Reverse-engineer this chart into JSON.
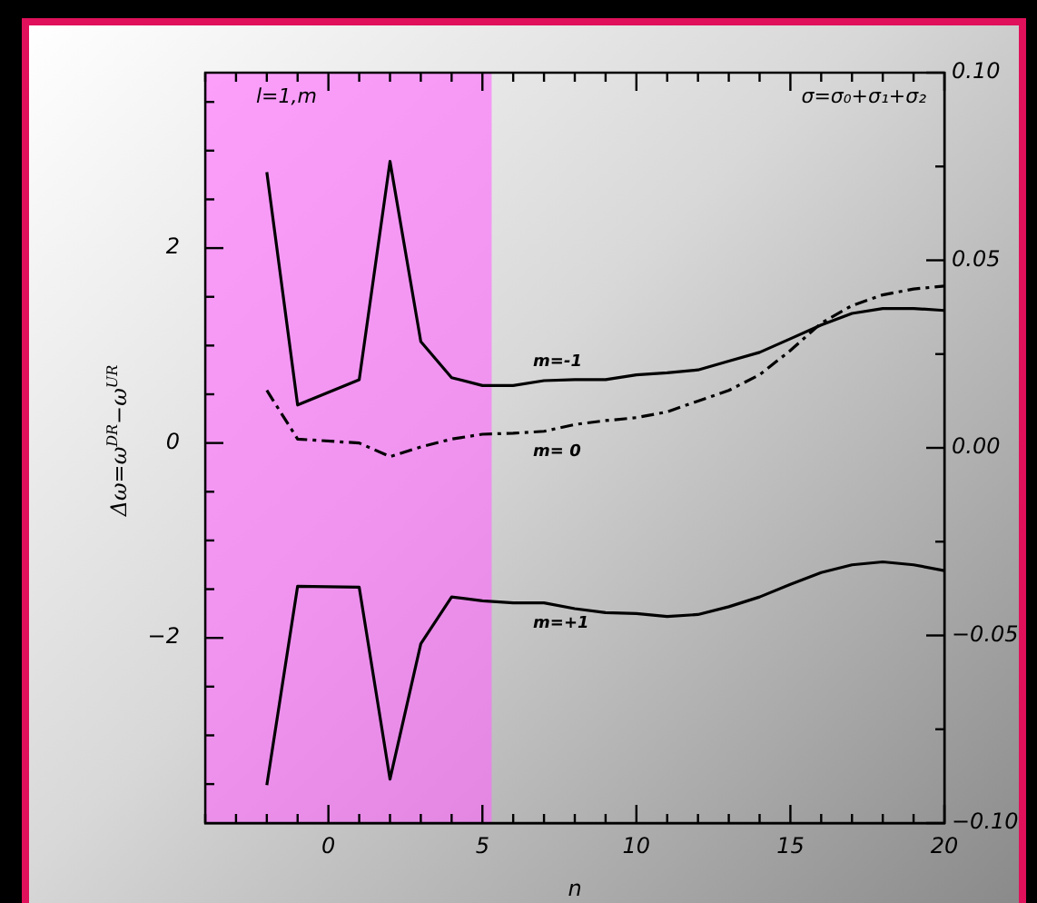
{
  "chart_data": {
    "type": "line",
    "xlabel": "n",
    "ylabel": "Δω=ω$^{DR}$−ω$^{UR}$",
    "x": [
      -2,
      -1,
      1,
      2,
      3,
      4,
      5,
      6,
      7,
      8,
      9,
      10,
      11,
      12,
      13,
      14,
      15,
      16,
      17,
      18,
      19,
      20
    ],
    "series": [
      {
        "name": "m=-1",
        "color": "#000000",
        "values": [
          2.78,
          0.39,
          0.65,
          2.89,
          1.04,
          0.67,
          0.59,
          0.59,
          0.64,
          0.65,
          0.65,
          0.7,
          0.72,
          0.75,
          0.84,
          0.93,
          1.07,
          1.21,
          1.33,
          1.38,
          1.38,
          1.36
        ]
      },
      {
        "name": "m= 0",
        "color": "#000000",
        "line_style": "dashed",
        "values": [
          0.54,
          0.04,
          0.0,
          -0.14,
          -0.04,
          0.04,
          0.09,
          0.1,
          0.12,
          0.19,
          0.23,
          0.26,
          0.32,
          0.43,
          0.54,
          0.7,
          0.95,
          1.23,
          1.41,
          1.52,
          1.58,
          1.61
        ]
      },
      {
        "name": "m=+1",
        "color": "#000000",
        "values": [
          -3.51,
          -1.47,
          -1.48,
          -3.45,
          -2.06,
          -1.58,
          -1.62,
          -1.64,
          -1.64,
          -1.7,
          -1.74,
          -1.75,
          -1.78,
          -1.76,
          -1.68,
          -1.58,
          -1.45,
          -1.33,
          -1.25,
          -1.22,
          -1.25,
          -1.31
        ]
      }
    ],
    "xlim": [
      -4,
      20
    ],
    "xticks": [
      {
        "value": -4,
        "label": null
      },
      {
        "value": -3,
        "label": null
      },
      {
        "value": -2,
        "label": null
      },
      {
        "value": -1,
        "label": null
      },
      0,
      {
        "value": 1,
        "label": null
      },
      {
        "value": 2,
        "label": null
      },
      {
        "value": 3,
        "label": null
      },
      {
        "value": 4,
        "label": null
      },
      5,
      {
        "value": 6,
        "label": null
      },
      {
        "value": 7,
        "label": null
      },
      {
        "value": 8,
        "label": null
      },
      {
        "value": 9,
        "label": null
      },
      10,
      {
        "value": 11,
        "label": null
      },
      {
        "value": 12,
        "label": null
      },
      {
        "value": 13,
        "label": null
      },
      {
        "value": 14,
        "label": null
      },
      15,
      {
        "value": 16,
        "label": null
      },
      {
        "value": 17,
        "label": null
      },
      {
        "value": 18,
        "label": null
      },
      {
        "value": 19,
        "label": null
      },
      20
    ],
    "ylim": [
      -3.9,
      3.8
    ],
    "yticks": [
      {
        "value": -3.5,
        "label": null
      },
      {
        "value": -3,
        "label": null
      },
      {
        "value": -2.5,
        "label": null
      },
      {
        "value": -2,
        "label": "−2"
      },
      {
        "value": -1.5,
        "label": null
      },
      {
        "value": -1,
        "label": null
      },
      {
        "value": -0.5,
        "label": null
      },
      0,
      {
        "value": 0.5,
        "label": null
      },
      {
        "value": 1,
        "label": null
      },
      {
        "value": 1.5,
        "label": null
      },
      2,
      {
        "value": 2.5,
        "label": null
      },
      {
        "value": 3,
        "label": null
      },
      {
        "value": 3.5,
        "label": null
      }
    ],
    "y2lim": [
      -0.1,
      0.1
    ],
    "y2ticks": [
      {
        "value": -0.1,
        "label": "−0.10"
      },
      {
        "value": -0.075,
        "label": null
      },
      {
        "value": -0.05,
        "label": "−0.05"
      },
      {
        "value": -0.025,
        "label": null
      },
      {
        "value": 0,
        "label": "0.00"
      },
      {
        "value": 0.025,
        "label": null
      },
      {
        "value": 0.05,
        "label": "0.05"
      },
      {
        "value": 0.075,
        "label": null
      },
      {
        "value": 0.1,
        "label": "0.10"
      }
    ],
    "bands": [
      {
        "axis": "x",
        "from": -4,
        "to": 5.3,
        "color": "#ff66ff"
      }
    ],
    "annotations": [
      "l=1,m",
      "σ=σ₀+σ₁+σ₂"
    ]
  }
}
